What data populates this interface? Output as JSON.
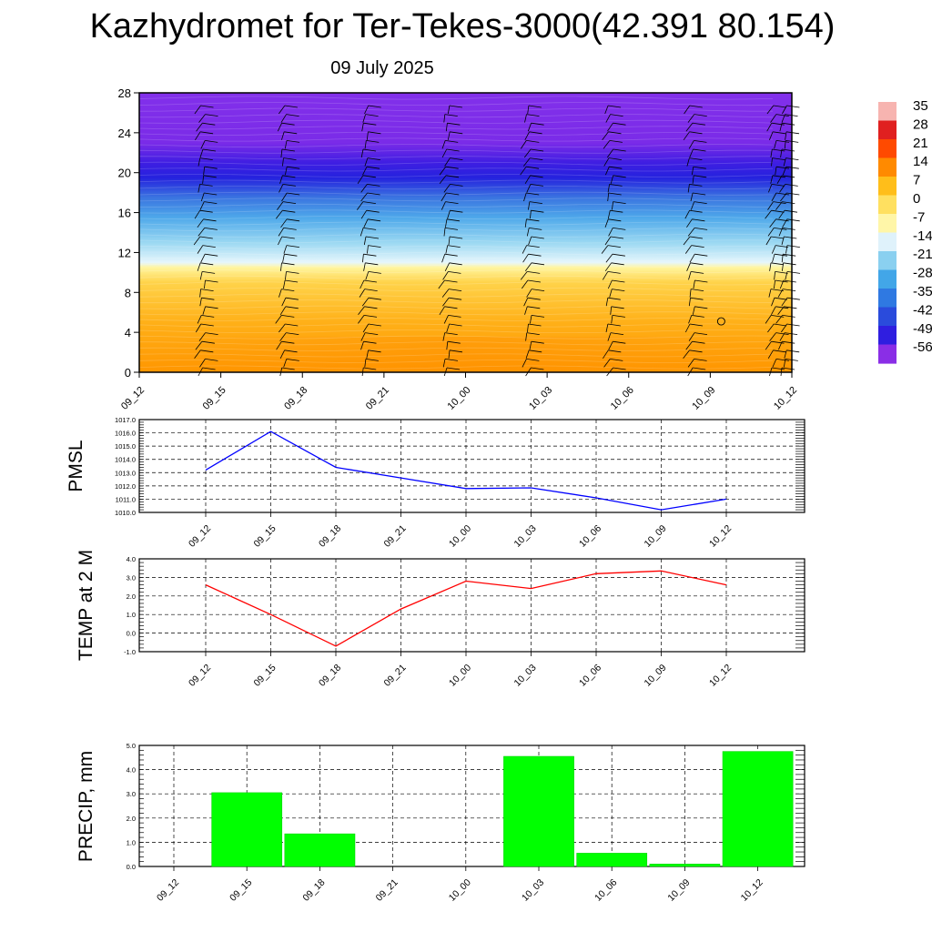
{
  "header": {
    "title": "Kazhydromet for Ter-Tekes-3000(42.391 80.154)",
    "date": "09 July 2025"
  },
  "time_labels": [
    "09_12",
    "09_15",
    "09_18",
    "09_21",
    "10_00",
    "10_03",
    "10_06",
    "10_09",
    "10_12"
  ],
  "chart_data": [
    {
      "type": "heatmap",
      "title": "",
      "xlabel": "",
      "ylabel": "",
      "categories": [
        "09_12",
        "09_15",
        "09_18",
        "09_21",
        "10_00",
        "10_03",
        "10_06",
        "10_09",
        "10_12"
      ],
      "yticks": [
        "0",
        "4",
        "8",
        "12",
        "16",
        "20",
        "24",
        "28"
      ],
      "ylim": [
        0,
        28
      ],
      "colorbar_labels": [
        "35",
        "28",
        "21",
        "14",
        "7",
        "0",
        "-7",
        "-14",
        "-21",
        "-28",
        "-35",
        "-42",
        "-49",
        "-56"
      ],
      "colorbar_colors": [
        "#f7b4b0",
        "#e02020",
        "#ff4a00",
        "#ff8a00",
        "#ffbe1a",
        "#ffe060",
        "#fff6a8",
        "#dff2fb",
        "#8ad0f0",
        "#42a6e8",
        "#2f79e2",
        "#2a4bdc",
        "#2f1ee0",
        "#8a2ee6"
      ],
      "profile_stops": [
        {
          "level": 0,
          "color": "#ff9600"
        },
        {
          "level": 5,
          "color": "#ffb018"
        },
        {
          "level": 9,
          "color": "#ffd34a"
        },
        {
          "level": 10.5,
          "color": "#fff5a0"
        },
        {
          "level": 11,
          "color": "#e6f6fc"
        },
        {
          "level": 13,
          "color": "#9bd8f2"
        },
        {
          "level": 15.5,
          "color": "#4ea8ea"
        },
        {
          "level": 17.5,
          "color": "#3a74e0"
        },
        {
          "level": 19.5,
          "color": "#2522de"
        },
        {
          "level": 21,
          "color": "#3f1ee2"
        },
        {
          "level": 23,
          "color": "#7a2be8"
        },
        {
          "level": 28,
          "color": "#8230ea"
        }
      ]
    },
    {
      "type": "line",
      "ylabel": "PMSL",
      "categories": [
        "09_12",
        "09_15",
        "09_18",
        "09_21",
        "10_00",
        "10_03",
        "10_06",
        "10_09",
        "10_12"
      ],
      "yticks": [
        "1010.0",
        "1011.0",
        "1012.0",
        "1013.0",
        "1014.0",
        "1015.0",
        "1016.0",
        "1017.0"
      ],
      "ylim": [
        1010,
        1017
      ],
      "grid": true,
      "color": "#0000ff",
      "values": [
        1013.2,
        1016.1,
        1013.4,
        1012.6,
        1011.8,
        1011.85,
        1011.1,
        1010.2,
        1011.0
      ]
    },
    {
      "type": "line",
      "ylabel": "TEMP at 2 M",
      "categories": [
        "09_12",
        "09_15",
        "09_18",
        "09_21",
        "10_00",
        "10_03",
        "10_06",
        "10_09",
        "10_12"
      ],
      "yticks": [
        "-1.0",
        "0.0",
        "1.0",
        "2.0",
        "3.0",
        "4.0"
      ],
      "ylim": [
        -1,
        4
      ],
      "grid": true,
      "color": "#ff0000",
      "values": [
        2.6,
        1.0,
        -0.7,
        1.3,
        2.8,
        2.4,
        3.2,
        3.35,
        2.6
      ]
    },
    {
      "type": "bar",
      "ylabel": "PRECIP, mm",
      "categories": [
        "09_12",
        "09_15",
        "09_18",
        "09_21",
        "10_00",
        "10_03",
        "10_06",
        "10_09",
        "10_12"
      ],
      "yticks": [
        "0.0",
        "1.0",
        "2.0",
        "3.0",
        "4.0",
        "5.0"
      ],
      "ylim": [
        0,
        5
      ],
      "grid": true,
      "color": "#00ff00",
      "values": [
        0,
        3.05,
        1.35,
        0,
        0,
        4.55,
        0.55,
        0.1,
        4.75
      ]
    }
  ]
}
